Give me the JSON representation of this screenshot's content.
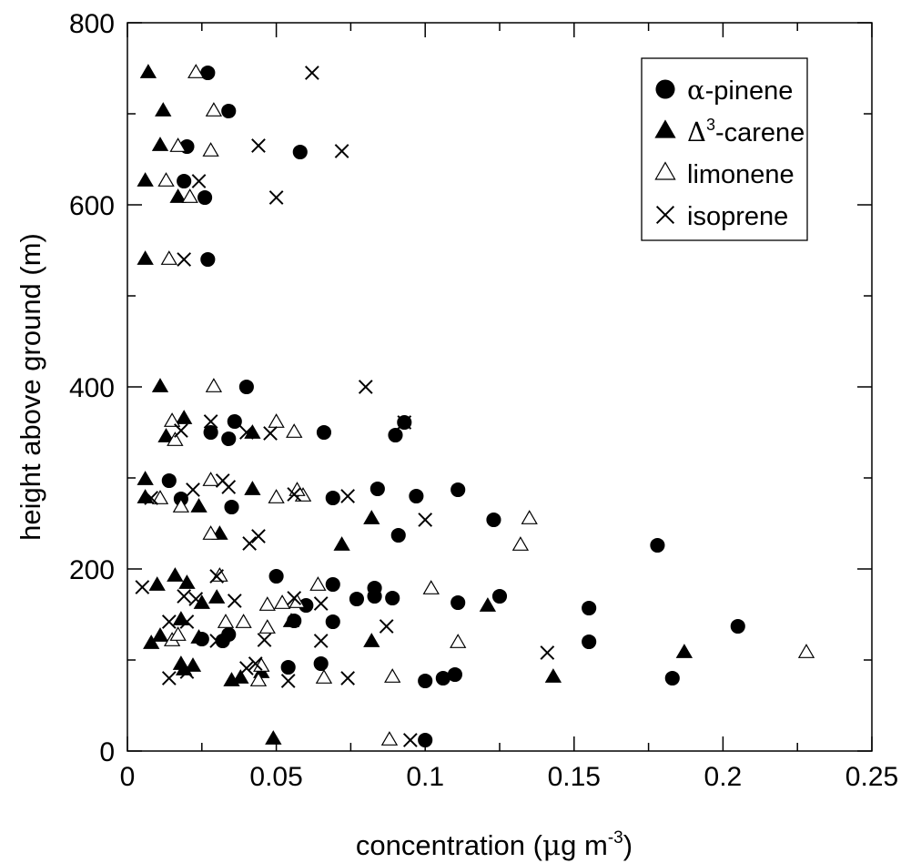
{
  "chart_data": {
    "type": "scatter",
    "title": "",
    "xlabel": "concentration (μg m-3)",
    "xlabel_parts": {
      "main": "concentration (",
      "mu": "μ",
      "g": "g m",
      "sup": "-3",
      "close": ")"
    },
    "ylabel": "height above ground (m)",
    "xlim": [
      0,
      0.25
    ],
    "ylim": [
      0,
      800
    ],
    "x_ticks": [
      0,
      0.05,
      0.1,
      0.15,
      0.2,
      0.25
    ],
    "x_tick_labels": [
      "0",
      "0.05",
      "0.1",
      "0.15",
      "0.2",
      "0.25"
    ],
    "y_ticks": [
      0,
      200,
      400,
      600,
      800
    ],
    "y_tick_labels": [
      "0",
      "200",
      "400",
      "600",
      "800"
    ],
    "grid": false,
    "legend_position": "top-right",
    "series": [
      {
        "name": "α-pinene",
        "name_parts": {
          "prefix": "α",
          "sup": "",
          "rest": "-pinene"
        },
        "marker": "filled-circle",
        "points": [
          [
            0.1,
            12
          ],
          [
            0.183,
            80
          ],
          [
            0.1,
            77
          ],
          [
            0.106,
            80
          ],
          [
            0.11,
            84
          ],
          [
            0.054,
            92
          ],
          [
            0.065,
            96
          ],
          [
            0.155,
            120
          ],
          [
            0.205,
            137
          ],
          [
            0.025,
            123
          ],
          [
            0.032,
            121
          ],
          [
            0.034,
            128
          ],
          [
            0.056,
            143
          ],
          [
            0.069,
            142
          ],
          [
            0.06,
            160
          ],
          [
            0.111,
            163
          ],
          [
            0.077,
            167
          ],
          [
            0.089,
            168
          ],
          [
            0.083,
            170
          ],
          [
            0.125,
            170
          ],
          [
            0.155,
            157
          ],
          [
            0.083,
            179
          ],
          [
            0.069,
            183
          ],
          [
            0.05,
            192
          ],
          [
            0.178,
            226
          ],
          [
            0.091,
            237
          ],
          [
            0.123,
            254
          ],
          [
            0.035,
            268
          ],
          [
            0.018,
            277
          ],
          [
            0.069,
            278
          ],
          [
            0.097,
            280
          ],
          [
            0.111,
            287
          ],
          [
            0.084,
            288
          ],
          [
            0.014,
            297
          ],
          [
            0.028,
            350
          ],
          [
            0.034,
            343
          ],
          [
            0.036,
            362
          ],
          [
            0.066,
            350
          ],
          [
            0.09,
            347
          ],
          [
            0.093,
            361
          ],
          [
            0.04,
            400
          ],
          [
            0.027,
            540
          ],
          [
            0.026,
            608
          ],
          [
            0.019,
            626
          ],
          [
            0.02,
            664
          ],
          [
            0.058,
            658
          ],
          [
            0.034,
            703
          ],
          [
            0.027,
            745
          ]
        ]
      },
      {
        "name": "Δ3-carene",
        "name_parts": {
          "prefix": "Δ",
          "sup": "3",
          "rest": "-carene"
        },
        "marker": "filled-triangle",
        "points": [
          [
            0.049,
            13
          ],
          [
            0.143,
            81
          ],
          [
            0.035,
            77
          ],
          [
            0.038,
            80
          ],
          [
            0.045,
            86
          ],
          [
            0.019,
            89
          ],
          [
            0.022,
            93
          ],
          [
            0.018,
            95
          ],
          [
            0.187,
            108
          ],
          [
            0.008,
            118
          ],
          [
            0.082,
            120
          ],
          [
            0.011,
            126
          ],
          [
            0.024,
            124
          ],
          [
            0.018,
            144
          ],
          [
            0.055,
            142
          ],
          [
            0.01,
            182
          ],
          [
            0.016,
            192
          ],
          [
            0.025,
            162
          ],
          [
            0.03,
            168
          ],
          [
            0.121,
            159
          ],
          [
            0.02,
            184
          ],
          [
            0.072,
            226
          ],
          [
            0.082,
            255
          ],
          [
            0.031,
            238
          ],
          [
            0.006,
            298
          ],
          [
            0.006,
            278
          ],
          [
            0.024,
            268
          ],
          [
            0.042,
            287
          ],
          [
            0.013,
            345
          ],
          [
            0.019,
            365
          ],
          [
            0.042,
            349
          ],
          [
            0.011,
            400
          ],
          [
            0.006,
            540
          ],
          [
            0.017,
            608
          ],
          [
            0.006,
            626
          ],
          [
            0.011,
            665
          ],
          [
            0.012,
            703
          ],
          [
            0.007,
            745
          ]
        ]
      },
      {
        "name": "limonene",
        "name_parts": {
          "prefix": "",
          "sup": "",
          "rest": "limonene"
        },
        "marker": "open-triangle",
        "points": [
          [
            0.088,
            12
          ],
          [
            0.044,
            77
          ],
          [
            0.066,
            80
          ],
          [
            0.089,
            81
          ],
          [
            0.045,
            93
          ],
          [
            0.228,
            108
          ],
          [
            0.015,
            121
          ],
          [
            0.111,
            119
          ],
          [
            0.017,
            127
          ],
          [
            0.033,
            141
          ],
          [
            0.039,
            141
          ],
          [
            0.047,
            135
          ],
          [
            0.047,
            160
          ],
          [
            0.052,
            162
          ],
          [
            0.057,
            163
          ],
          [
            0.064,
            182
          ],
          [
            0.102,
            178
          ],
          [
            0.031,
            192
          ],
          [
            0.132,
            226
          ],
          [
            0.135,
            255
          ],
          [
            0.028,
            238
          ],
          [
            0.018,
            268
          ],
          [
            0.011,
            277
          ],
          [
            0.05,
            278
          ],
          [
            0.059,
            280
          ],
          [
            0.057,
            286
          ],
          [
            0.028,
            297
          ],
          [
            0.016,
            341
          ],
          [
            0.056,
            350
          ],
          [
            0.05,
            361
          ],
          [
            0.015,
            362
          ],
          [
            0.029,
            400
          ],
          [
            0.014,
            540
          ],
          [
            0.021,
            608
          ],
          [
            0.013,
            626
          ],
          [
            0.017,
            664
          ],
          [
            0.028,
            659
          ],
          [
            0.029,
            703
          ],
          [
            0.023,
            745
          ]
        ]
      },
      {
        "name": "isoprene",
        "name_parts": {
          "prefix": "",
          "sup": "",
          "rest": "isoprene"
        },
        "marker": "cross",
        "points": [
          [
            0.095,
            12
          ],
          [
            0.014,
            80
          ],
          [
            0.054,
            77
          ],
          [
            0.074,
            80
          ],
          [
            0.02,
            87
          ],
          [
            0.04,
            91
          ],
          [
            0.043,
            96
          ],
          [
            0.141,
            108
          ],
          [
            0.03,
            121
          ],
          [
            0.046,
            122
          ],
          [
            0.087,
            137
          ],
          [
            0.065,
            121
          ],
          [
            0.005,
            180
          ],
          [
            0.014,
            142
          ],
          [
            0.02,
            142
          ],
          [
            0.019,
            170
          ],
          [
            0.023,
            167
          ],
          [
            0.036,
            165
          ],
          [
            0.065,
            162
          ],
          [
            0.056,
            168
          ],
          [
            0.03,
            192
          ],
          [
            0.1,
            254
          ],
          [
            0.041,
            228
          ],
          [
            0.044,
            236
          ],
          [
            0.008,
            278
          ],
          [
            0.022,
            287
          ],
          [
            0.034,
            290
          ],
          [
            0.032,
            297
          ],
          [
            0.074,
            280
          ],
          [
            0.056,
            282
          ],
          [
            0.018,
            352
          ],
          [
            0.028,
            362
          ],
          [
            0.04,
            350
          ],
          [
            0.048,
            349
          ],
          [
            0.093,
            361
          ],
          [
            0.08,
            400
          ],
          [
            0.019,
            540
          ],
          [
            0.024,
            626
          ],
          [
            0.05,
            608
          ],
          [
            0.044,
            665
          ],
          [
            0.072,
            659
          ],
          [
            0.062,
            745
          ]
        ]
      }
    ]
  }
}
